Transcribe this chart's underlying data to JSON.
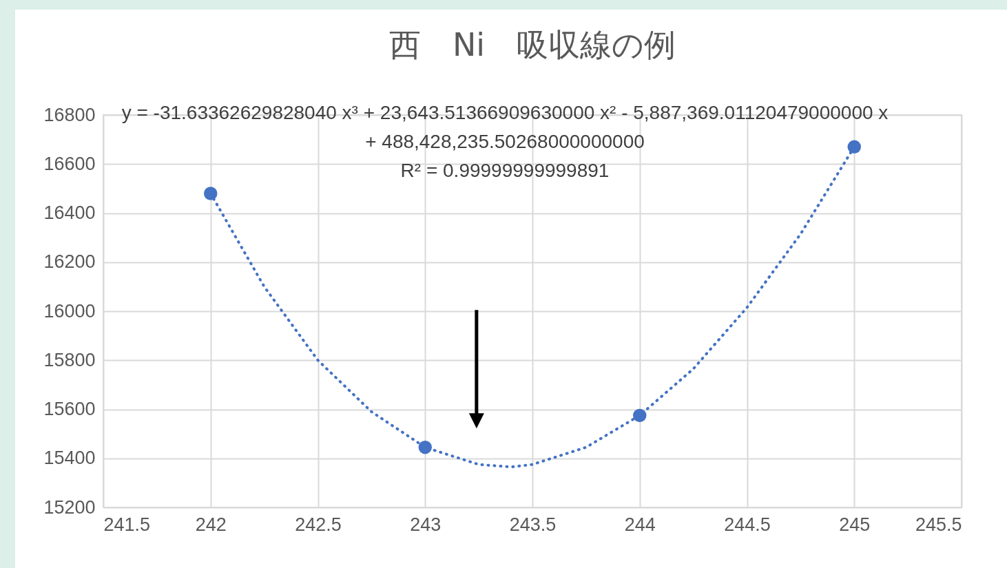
{
  "chart_data": {
    "type": "scatter",
    "title": "西　Ni　吸収線の例",
    "xlim": [
      241.5,
      245.5
    ],
    "xticks": [
      241.5,
      242,
      242.5,
      243,
      243.5,
      244,
      244.5,
      245,
      245.5
    ],
    "ylim": [
      15200,
      16800
    ],
    "yticks": [
      15200,
      15400,
      15600,
      15800,
      16000,
      16200,
      16400,
      16600,
      16800
    ],
    "grid": true,
    "series": [
      {
        "marker": "circle",
        "color": "#4472c4",
        "x": [
          242,
          243,
          244,
          245
        ],
        "values": [
          16480,
          15445,
          15575,
          16670
        ]
      },
      {
        "type": "line",
        "line_style": "dotted",
        "color": "#4472c4",
        "x": [
          242,
          242.25,
          242.5,
          242.75,
          243,
          243.25,
          243.4,
          243.5,
          243.75,
          244,
          244.25,
          244.5,
          244.75,
          245
        ],
        "values": [
          16480,
          16100,
          15800,
          15590,
          15445,
          15375,
          15365,
          15375,
          15445,
          15575,
          15765,
          16015,
          16315,
          16670
        ]
      }
    ],
    "annotations": [
      "y = -31.63362629828040 x³ + 23,643.51366909630000 x² - 5,887,369.01120479000000 x + 488,428,235.50268000000000",
      "R² = 0.99999999999891"
    ]
  }
}
